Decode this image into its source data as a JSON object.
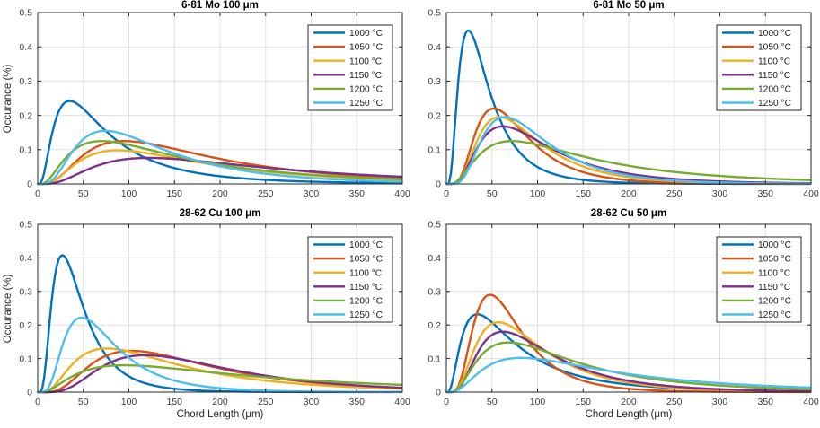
{
  "figure": {
    "background": "#ffffff",
    "axis_color": "#262626",
    "grid_color": "#e0e0e0",
    "tick_label_color": "#3d3d3d",
    "legend_border_color": "#262626",
    "legend_background": "#ffffff"
  },
  "chart_data": [
    {
      "type": "line",
      "title": "6-81 Mo 100 μm",
      "xlabel": "",
      "ylabel": "Occurance (%)",
      "xlim": [
        0,
        400
      ],
      "ylim": [
        0,
        0.5
      ],
      "xticks": [
        0,
        50,
        100,
        150,
        200,
        250,
        300,
        350,
        400
      ],
      "yticks": [
        0,
        0.1,
        0.2,
        0.3,
        0.4,
        0.5
      ],
      "grid": true,
      "legend_position": "top-right",
      "series": [
        {
          "name": "1000 °C",
          "color": "#0072BD",
          "shape": "lognormal",
          "peak_x": 35,
          "peak_y": 0.242,
          "log_sigma": 0.8
        },
        {
          "name": "1050 °C",
          "color": "#D95319",
          "shape": "lognormal",
          "peak_x": 95,
          "peak_y": 0.125,
          "log_sigma": 0.72
        },
        {
          "name": "1100 °C",
          "color": "#EDB120",
          "shape": "lognormal",
          "peak_x": 88,
          "peak_y": 0.098,
          "log_sigma": 0.74
        },
        {
          "name": "1150 °C",
          "color": "#7E2F8E",
          "shape": "lognormal",
          "peak_x": 122,
          "peak_y": 0.076,
          "log_sigma": 0.74
        },
        {
          "name": "1200 °C",
          "color": "#77AC30",
          "shape": "lognormal",
          "peak_x": 70,
          "peak_y": 0.125,
          "log_sigma": 0.83
        },
        {
          "name": "1250 °C",
          "color": "#4DBEEE",
          "shape": "lognormal",
          "peak_x": 74,
          "peak_y": 0.155,
          "log_sigma": 0.67
        }
      ]
    },
    {
      "type": "line",
      "title": "6-81 Mo 50 μm",
      "xlabel": "",
      "ylabel": "",
      "xlim": [
        0,
        400
      ],
      "ylim": [
        0,
        0.5
      ],
      "xticks": [
        0,
        50,
        100,
        150,
        200,
        250,
        300,
        350,
        400
      ],
      "yticks": [
        0,
        0.1,
        0.2,
        0.3,
        0.4,
        0.5
      ],
      "grid": true,
      "legend_position": "top-right",
      "series": [
        {
          "name": "1000 °C",
          "color": "#0072BD",
          "shape": "lognormal",
          "peak_x": 24,
          "peak_y": 0.448,
          "log_sigma": 0.68
        },
        {
          "name": "1050 °C",
          "color": "#D95319",
          "shape": "lognormal",
          "peak_x": 52,
          "peak_y": 0.22,
          "log_sigma": 0.55
        },
        {
          "name": "1100 °C",
          "color": "#EDB120",
          "shape": "lognormal",
          "peak_x": 58,
          "peak_y": 0.195,
          "log_sigma": 0.58
        },
        {
          "name": "1150 °C",
          "color": "#7E2F8E",
          "shape": "lognormal",
          "peak_x": 62,
          "peak_y": 0.168,
          "log_sigma": 0.63
        },
        {
          "name": "1200 °C",
          "color": "#77AC30",
          "shape": "lognormal",
          "peak_x": 72,
          "peak_y": 0.125,
          "log_sigma": 0.78
        },
        {
          "name": "1250 °C",
          "color": "#4DBEEE",
          "shape": "lognormal",
          "peak_x": 64,
          "peak_y": 0.195,
          "log_sigma": 0.56
        }
      ]
    },
    {
      "type": "line",
      "title": "28-62 Cu 100 μm",
      "xlabel": "Chord Length (μm)",
      "ylabel": "Occurance (%)",
      "xlim": [
        0,
        400
      ],
      "ylim": [
        0,
        0.5
      ],
      "xticks": [
        0,
        50,
        100,
        150,
        200,
        250,
        300,
        350,
        400
      ],
      "yticks": [
        0,
        0.1,
        0.2,
        0.3,
        0.4,
        0.5
      ],
      "grid": true,
      "legend_position": "top-right",
      "series": [
        {
          "name": "1000 °C",
          "color": "#0072BD",
          "shape": "lognormal",
          "peak_x": 27,
          "peak_y": 0.408,
          "log_sigma": 0.63
        },
        {
          "name": "1050 °C",
          "color": "#D95319",
          "shape": "lognormal",
          "peak_x": 103,
          "peak_y": 0.123,
          "log_sigma": 0.63
        },
        {
          "name": "1100 °C",
          "color": "#EDB120",
          "shape": "lognormal",
          "peak_x": 76,
          "peak_y": 0.13,
          "log_sigma": 0.73
        },
        {
          "name": "1150 °C",
          "color": "#7E2F8E",
          "shape": "lognormal",
          "peak_x": 118,
          "peak_y": 0.11,
          "log_sigma": 0.59
        },
        {
          "name": "1200 °C",
          "color": "#77AC30",
          "shape": "lognormal",
          "peak_x": 95,
          "peak_y": 0.08,
          "log_sigma": 0.89
        },
        {
          "name": "1250 °C",
          "color": "#4DBEEE",
          "shape": "lognormal",
          "peak_x": 48,
          "peak_y": 0.222,
          "log_sigma": 0.59
        }
      ]
    },
    {
      "type": "line",
      "title": "28-62 Cu 50 μm",
      "xlabel": "Chord Length (μm)",
      "ylabel": "",
      "xlim": [
        0,
        400
      ],
      "ylim": [
        0,
        0.5
      ],
      "xticks": [
        0,
        50,
        100,
        150,
        200,
        250,
        300,
        350,
        400
      ],
      "yticks": [
        0,
        0.1,
        0.2,
        0.3,
        0.4,
        0.5
      ],
      "grid": true,
      "legend_position": "top-right",
      "series": [
        {
          "name": "1000 °C",
          "color": "#0072BD",
          "shape": "lognormal",
          "peak_x": 34,
          "peak_y": 0.232,
          "log_sigma": 0.82
        },
        {
          "name": "1050 °C",
          "color": "#D95319",
          "shape": "lognormal",
          "peak_x": 48,
          "peak_y": 0.29,
          "log_sigma": 0.55
        },
        {
          "name": "1100 °C",
          "color": "#EDB120",
          "shape": "lognormal",
          "peak_x": 57,
          "peak_y": 0.208,
          "log_sigma": 0.63
        },
        {
          "name": "1150 °C",
          "color": "#7E2F8E",
          "shape": "lognormal",
          "peak_x": 62,
          "peak_y": 0.18,
          "log_sigma": 0.64
        },
        {
          "name": "1200 °C",
          "color": "#77AC30",
          "shape": "lognormal",
          "peak_x": 68,
          "peak_y": 0.148,
          "log_sigma": 0.74
        },
        {
          "name": "1250 °C",
          "color": "#4DBEEE",
          "shape": "lognormal",
          "peak_x": 82,
          "peak_y": 0.102,
          "log_sigma": 0.79
        }
      ]
    }
  ]
}
